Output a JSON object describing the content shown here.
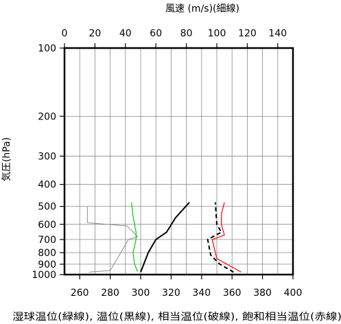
{
  "chart_data": {
    "type": "line",
    "top_axis": {
      "label": "風速 (m/s)(細線)",
      "range": [
        0,
        150
      ],
      "ticks": [
        0,
        20,
        40,
        60,
        80,
        100,
        120,
        140
      ]
    },
    "bottom_axis": {
      "label": "湿球温位(緑線), 温位(黒線), 相当温位(破線), 飽和相当温位(赤線)",
      "range": [
        250,
        400
      ],
      "ticks": [
        260,
        280,
        300,
        320,
        340,
        360,
        380,
        400
      ]
    },
    "y_axis": {
      "label": "気圧(hPa)",
      "scale": "log",
      "range": [
        1000,
        100
      ],
      "ticks": [
        100,
        200,
        300,
        400,
        500,
        600,
        700,
        800,
        900,
        1000
      ]
    },
    "grid": true,
    "series": [
      {
        "key": "wind_speed",
        "axis": "top",
        "color": "#808080",
        "dash": "none",
        "points": [
          [
            16,
            975
          ],
          [
            30,
            960
          ],
          [
            42,
            700
          ],
          [
            48,
            680
          ],
          [
            41,
            610
          ],
          [
            15,
            590
          ],
          [
            15,
            500
          ]
        ]
      },
      {
        "key": "wet_bulb_potential_temperature",
        "axis": "bottom",
        "color": "#00cc00",
        "dash": "none",
        "points": [
          [
            298,
            970
          ],
          [
            296,
            900
          ],
          [
            295,
            800
          ],
          [
            297,
            700
          ],
          [
            297,
            650
          ],
          [
            296,
            600
          ],
          [
            295,
            550
          ],
          [
            294,
            480
          ]
        ]
      },
      {
        "key": "potential_temperature",
        "axis": "bottom",
        "color": "#000000",
        "dash": "none",
        "points": [
          [
            300,
            975
          ],
          [
            305,
            800
          ],
          [
            310,
            700
          ],
          [
            317,
            650
          ],
          [
            323,
            560
          ],
          [
            332,
            480
          ]
        ]
      },
      {
        "key": "equivalent_potential_temperature",
        "axis": "bottom",
        "color": "#000000",
        "dash": "6,4",
        "points": [
          [
            361,
            975
          ],
          [
            352,
            900
          ],
          [
            346,
            820
          ],
          [
            344,
            700
          ],
          [
            353,
            650
          ],
          [
            350,
            600
          ],
          [
            349,
            480
          ]
        ]
      },
      {
        "key": "saturated_equivalent_potential_temperature",
        "axis": "bottom",
        "color": "#ff0000",
        "dash": "none",
        "points": [
          [
            366,
            975
          ],
          [
            350,
            850
          ],
          [
            348,
            750
          ],
          [
            347,
            700
          ],
          [
            355,
            670
          ],
          [
            353,
            600
          ],
          [
            353,
            540
          ],
          [
            355,
            480
          ]
        ]
      }
    ]
  }
}
